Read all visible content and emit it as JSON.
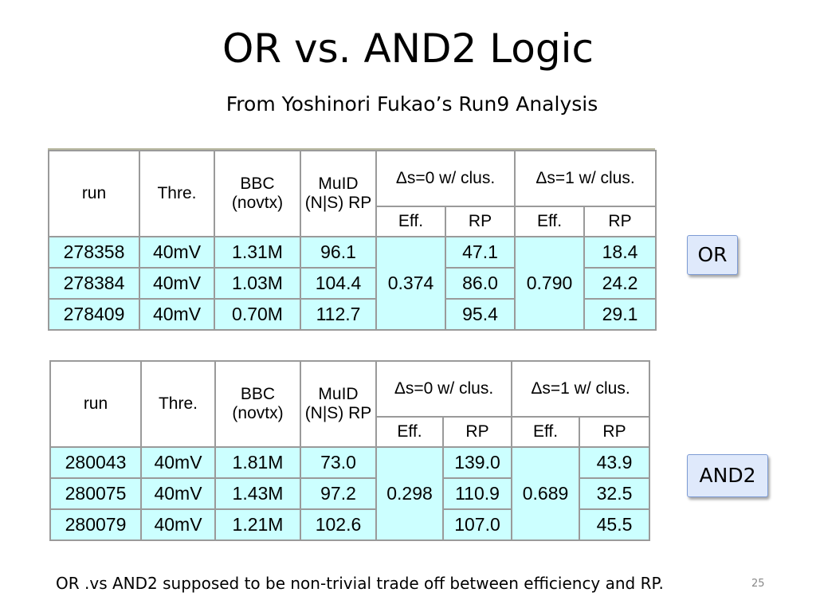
{
  "slide": {
    "title": "OR vs. AND2 Logic",
    "subtitle": "From Yoshinori Fukao’s Run9 Analysis",
    "footnote": "OR .vs AND2 supposed to be non-trivial trade off between efficiency and RP.",
    "page_number": "25"
  },
  "headers": {
    "run": "run",
    "thre": "Thre.",
    "bbc": "BBC (novtx)",
    "muid": "MuID (N|S) RP",
    "ds0": "Δs=0 w/ clus.",
    "ds1": "Δs=1 w/ clus.",
    "eff": "Eff.",
    "rp": "RP"
  },
  "tables": {
    "or": {
      "label": "OR",
      "eff_ds0": "0.374",
      "eff_ds1": "0.790",
      "rows": [
        {
          "run": "278358",
          "thre": "40mV",
          "bbc": "1.31M",
          "muid": "96.1",
          "rp0": "47.1",
          "rp1": "18.4"
        },
        {
          "run": "278384",
          "thre": "40mV",
          "bbc": "1.03M",
          "muid": "104.4",
          "rp0": "86.0",
          "rp1": "24.2"
        },
        {
          "run": "278409",
          "thre": "40mV",
          "bbc": "0.70M",
          "muid": "112.7",
          "rp0": "95.4",
          "rp1": "29.1"
        }
      ]
    },
    "and2": {
      "label": "AND2",
      "eff_ds0": "0.298",
      "eff_ds1": "0.689",
      "rows": [
        {
          "run": "280043",
          "thre": "40mV",
          "bbc": "1.81M",
          "muid": "73.0",
          "rp0": "139.0",
          "rp1": "43.9"
        },
        {
          "run": "280075",
          "thre": "40mV",
          "bbc": "1.43M",
          "muid": "97.2",
          "rp0": "110.9",
          "rp1": "32.5"
        },
        {
          "run": "280079",
          "thre": "40mV",
          "bbc": "1.21M",
          "muid": "102.6",
          "rp0": "107.0",
          "rp1": "45.5"
        }
      ]
    }
  }
}
